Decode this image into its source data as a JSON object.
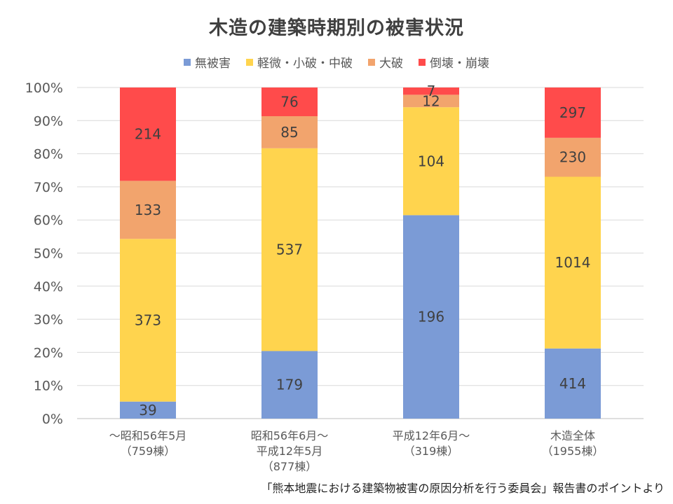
{
  "chart_data": {
    "type": "bar",
    "stacked": "percent",
    "title": "木造の建築時期別の被害状況",
    "categories": [
      [
        "～昭和56年5月",
        "（759棟）"
      ],
      [
        "昭和56年6月～",
        "平成12年5月",
        "（877棟）"
      ],
      [
        "平成12年6月～",
        "（319棟）"
      ],
      [
        "木造全体",
        "（1955棟）"
      ]
    ],
    "series": [
      {
        "name": "無被害",
        "color": "#7B9BD6",
        "values": [
          39,
          179,
          196,
          414
        ]
      },
      {
        "name": "軽微・小破・中破",
        "color": "#FFD44E",
        "values": [
          373,
          537,
          104,
          1014
        ]
      },
      {
        "name": "大破",
        "color": "#F2A46D",
        "values": [
          133,
          85,
          12,
          230
        ]
      },
      {
        "name": "倒壊・崩壊",
        "color": "#FF4B4B",
        "values": [
          214,
          76,
          7,
          297
        ]
      }
    ],
    "yticks": [
      "0%",
      "10%",
      "20%",
      "30%",
      "40%",
      "50%",
      "60%",
      "70%",
      "80%",
      "90%",
      "100%"
    ],
    "ylim": [
      0,
      100
    ],
    "grid": true,
    "legend_position": "top"
  },
  "source": "「熊本地震における建築物被害の原因分析を行う委員会」報告書のポイントより"
}
